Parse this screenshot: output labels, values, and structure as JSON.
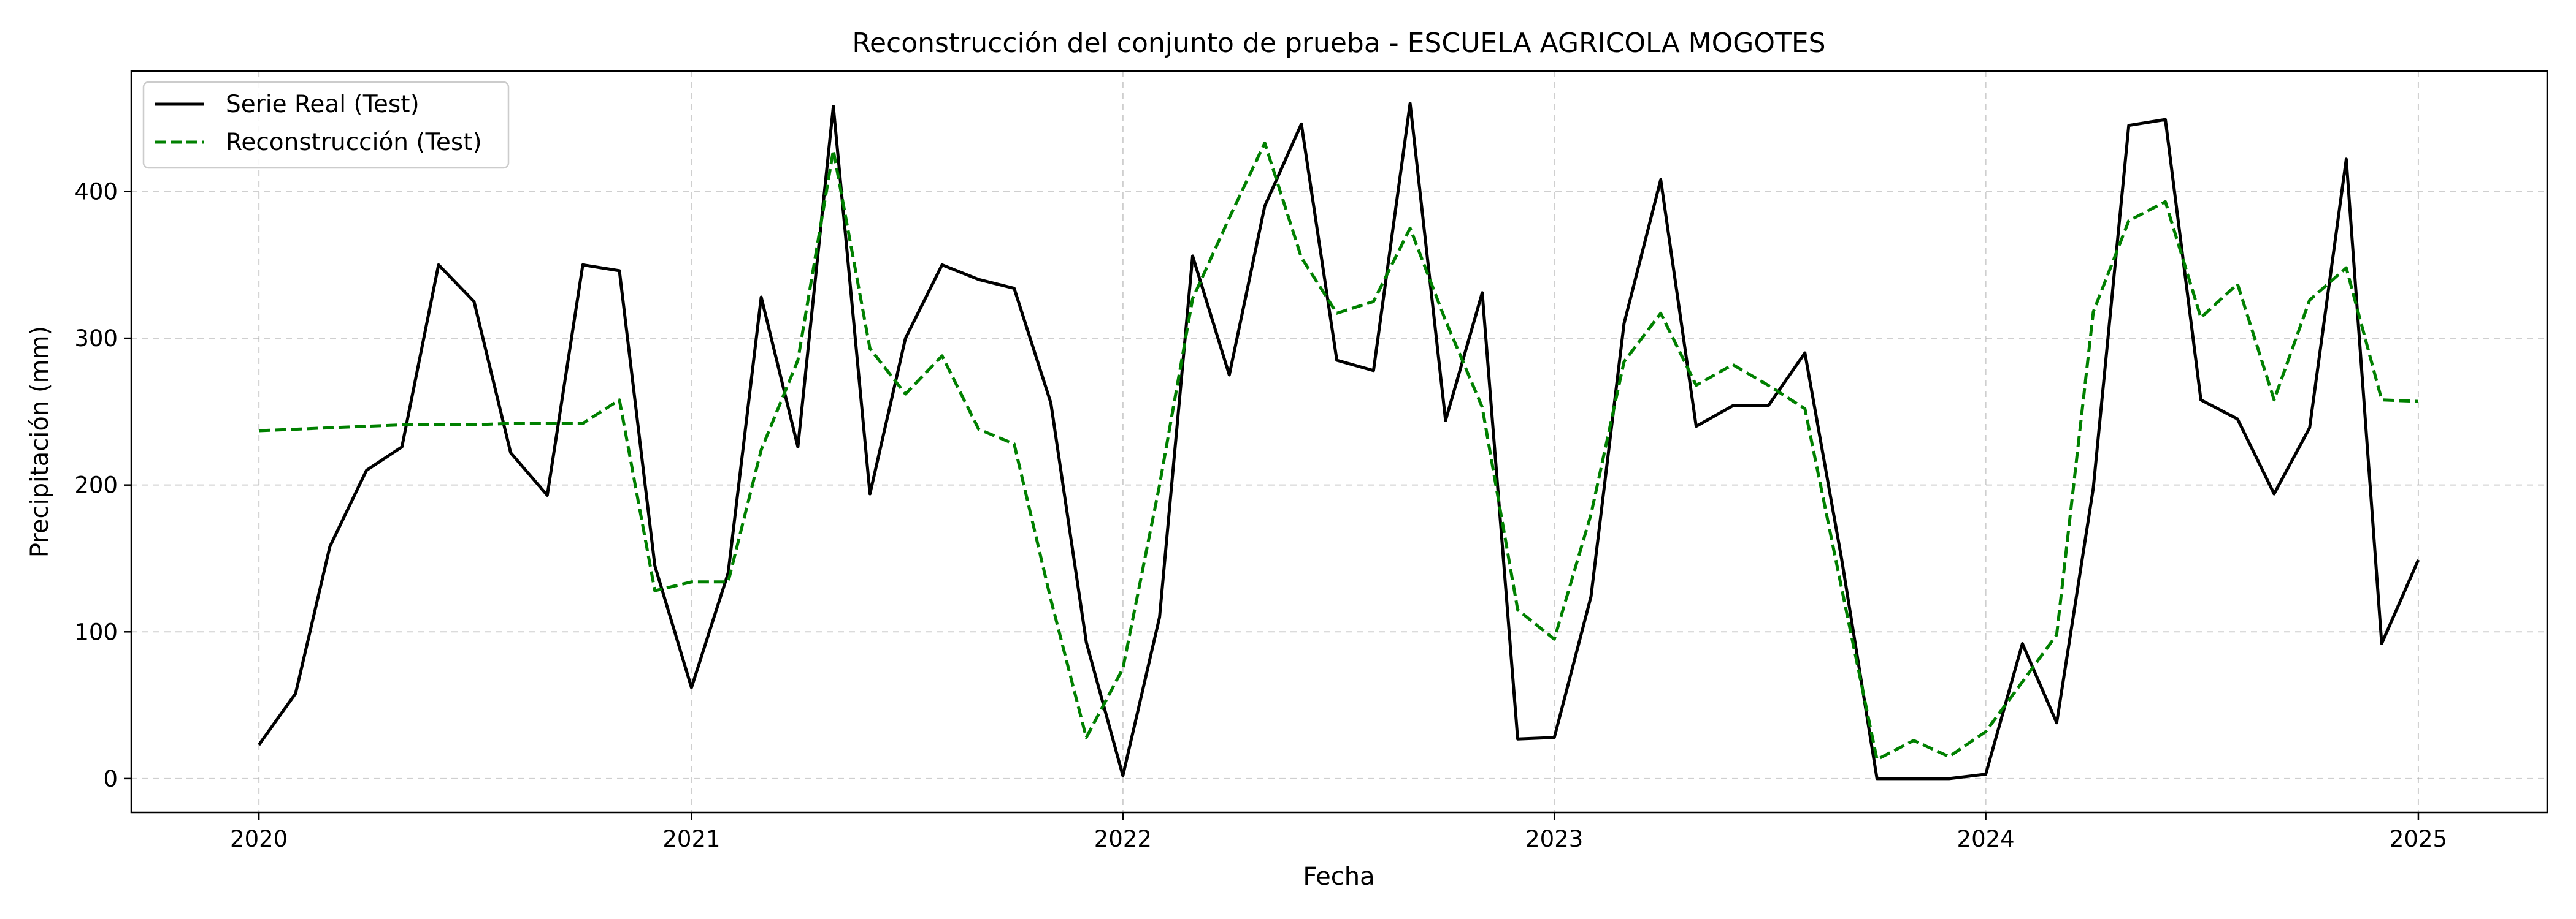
{
  "chart_data": {
    "type": "line",
    "title": "Reconstrucción del conjunto de prueba - ESCUELA AGRICOLA MOGOTES",
    "xlabel": "Fecha",
    "ylabel": "Precipitación (mm)",
    "x_range": [
      "2019-09-15",
      "2025-04-20"
    ],
    "xticks": [
      "2020-01-01",
      "2021-01-01",
      "2022-01-01",
      "2023-01-01",
      "2024-01-01",
      "2025-01-01"
    ],
    "xtick_labels": [
      "2020",
      "2021",
      "2022",
      "2023",
      "2024",
      "2025"
    ],
    "ylim": [
      -23,
      482
    ],
    "yticks": [
      0,
      100,
      200,
      300,
      400
    ],
    "grid": true,
    "legend_position": "upper-left",
    "x": [
      "2020-01",
      "2020-02",
      "2020-03",
      "2020-04",
      "2020-05",
      "2020-06",
      "2020-07",
      "2020-08",
      "2020-09",
      "2020-10",
      "2020-11",
      "2020-12",
      "2021-01",
      "2021-02",
      "2021-03",
      "2021-04",
      "2021-05",
      "2021-06",
      "2021-07",
      "2021-08",
      "2021-09",
      "2021-10",
      "2021-11",
      "2021-12",
      "2022-01",
      "2022-02",
      "2022-03",
      "2022-04",
      "2022-05",
      "2022-06",
      "2022-07",
      "2022-08",
      "2022-09",
      "2022-10",
      "2022-11",
      "2022-12",
      "2023-01",
      "2023-02",
      "2023-03",
      "2023-04",
      "2023-05",
      "2023-06",
      "2023-07",
      "2023-08",
      "2023-09",
      "2023-10",
      "2023-11",
      "2023-12",
      "2024-01",
      "2024-02",
      "2024-03",
      "2024-04",
      "2024-05",
      "2024-06",
      "2024-07",
      "2024-08",
      "2024-09",
      "2024-10",
      "2024-11",
      "2024-12",
      "2025-01"
    ],
    "series": [
      {
        "name": "Serie Real (Test)",
        "color": "#000000",
        "style": "solid",
        "values": [
          23,
          58,
          158,
          210,
          226,
          350,
          325,
          222,
          193,
          350,
          346,
          145,
          62,
          140,
          328,
          226,
          458,
          194,
          300,
          350,
          340,
          334,
          256,
          93,
          2,
          110,
          356,
          275,
          390,
          446,
          285,
          278,
          460,
          244,
          331,
          27,
          28,
          124,
          310,
          408,
          240,
          254,
          254,
          290,
          150,
          0,
          0,
          0,
          3,
          92,
          38,
          198,
          445,
          449,
          258,
          245,
          194,
          239,
          422,
          92,
          149
        ]
      },
      {
        "name": "Reconstrucción (Test)",
        "color": "#008000",
        "style": "dashed",
        "values": [
          237,
          238,
          239,
          240,
          241,
          241,
          241,
          242,
          242,
          242,
          258,
          128,
          134,
          134,
          224,
          285,
          428,
          293,
          262,
          288,
          238,
          228,
          122,
          28,
          75,
          200,
          327,
          382,
          433,
          355,
          317,
          325,
          375,
          312,
          253,
          115,
          95,
          180,
          284,
          317,
          268,
          282,
          268,
          252,
          130,
          13,
          26,
          15,
          32,
          66,
          98,
          318,
          380,
          393,
          314,
          337,
          258,
          326,
          348,
          258,
          257
        ]
      }
    ]
  }
}
